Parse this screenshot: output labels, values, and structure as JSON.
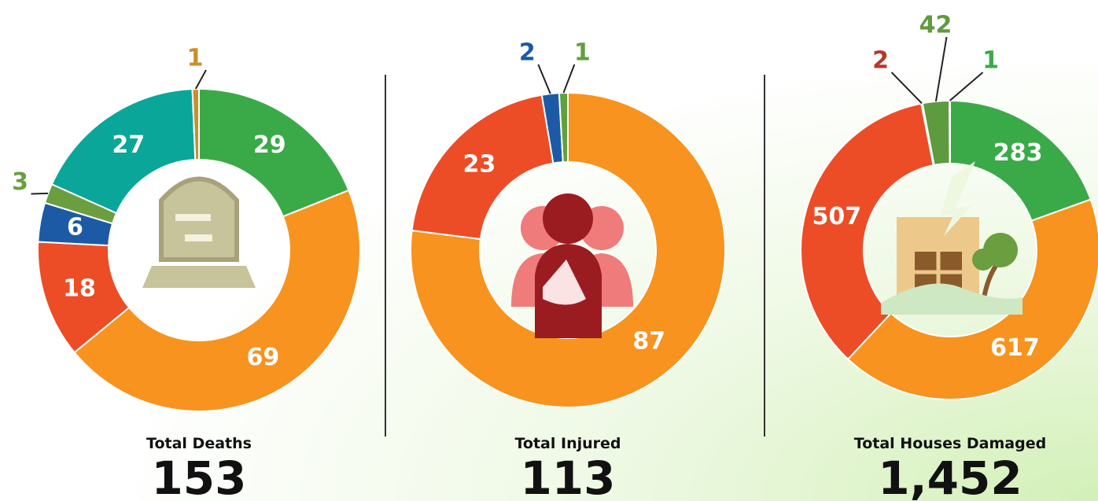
{
  "chart_data": [
    {
      "type": "pie",
      "title": "Total Deaths",
      "total": 153,
      "values": [
        29,
        69,
        18,
        6,
        3,
        27,
        1
      ],
      "colors": [
        "#3aaa48",
        "#f7931e",
        "#ec4d26",
        "#1c5aa6",
        "#6a9e3f",
        "#0aa69a",
        "#c9902a"
      ]
    },
    {
      "type": "pie",
      "title": "Total Injured",
      "total": 113,
      "values": [
        87,
        23,
        2,
        1
      ],
      "colors": [
        "#f7931e",
        "#ec4d26",
        "#1c5aa6",
        "#5fa041"
      ]
    },
    {
      "type": "pie",
      "title": "Total Houses Damaged",
      "total": {
        "value": 1452,
        "label": "1,452"
      },
      "values": [
        283,
        617,
        507,
        2,
        42,
        1
      ],
      "colors": [
        "#3aaa48",
        "#f7931e",
        "#ec4d26",
        "#b8372a",
        "#5e9b3f",
        "#3aaa48"
      ]
    }
  ]
}
